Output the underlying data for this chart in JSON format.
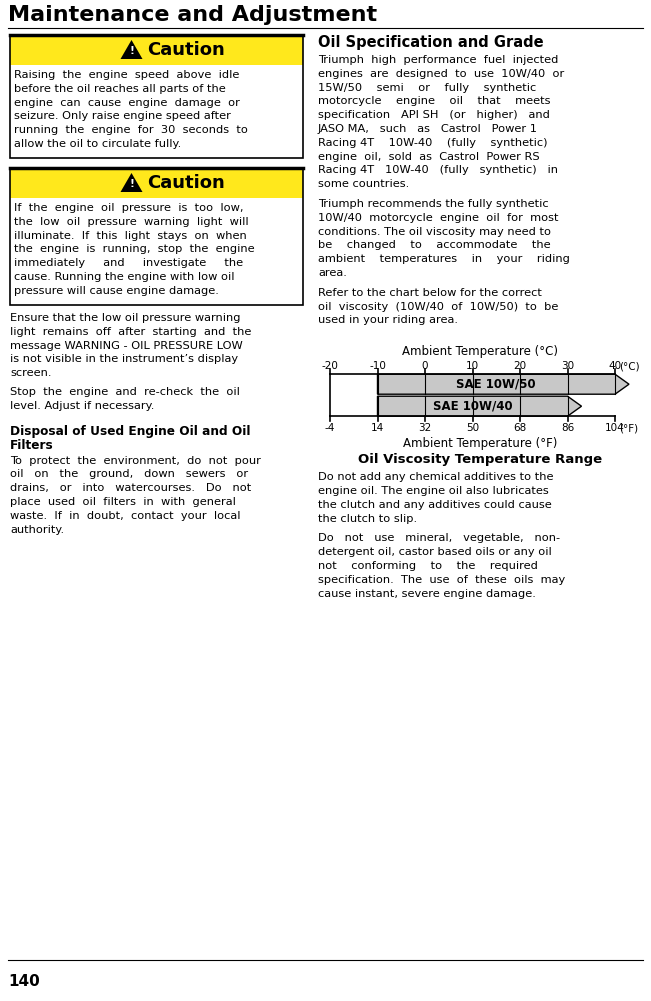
{
  "title": "Maintenance and Adjustment",
  "page_number": "140",
  "bg_color": "#ffffff",
  "caution1_header": "Caution",
  "caution2_header": "Caution",
  "caution_yellow": "#FFE81C",
  "caution_black": "#000000",
  "body_fontsize": 8.2,
  "heading_fontsize": 9.0,
  "title_fontsize": 16,
  "temp_c": [
    -20,
    -10,
    0,
    10,
    20,
    30,
    40
  ],
  "temp_f": [
    -4,
    14,
    32,
    50,
    68,
    86,
    104
  ],
  "gray": "#c8c8c8",
  "chart_label1": "SAE 10W/50",
  "chart_label2": "SAE 10W/40",
  "chart_title": "Ambient Temperature (°C)",
  "chart_bottom": "Ambient Temperature (°F)",
  "chart_viscosity": "Oil Viscosity Temperature Range"
}
